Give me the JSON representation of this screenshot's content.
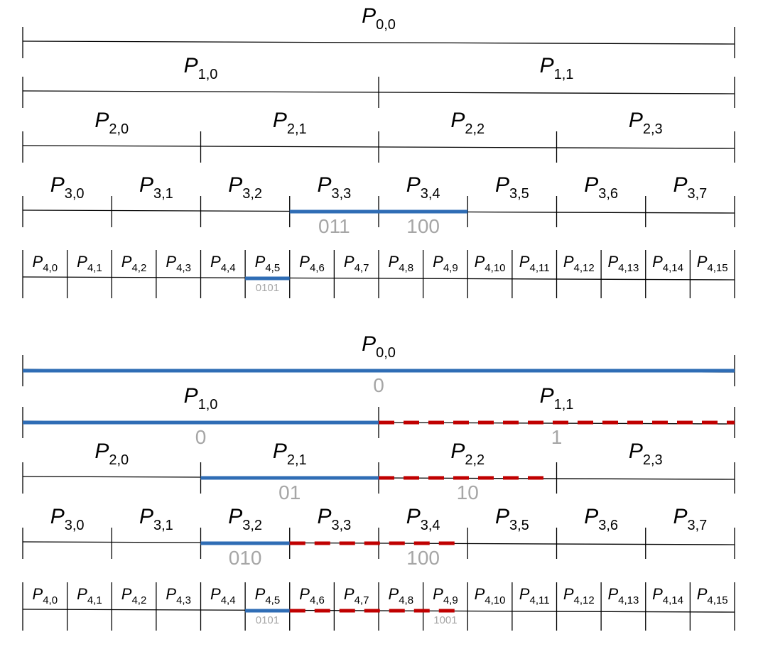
{
  "symbol": "P",
  "panels": [
    {
      "levels": [
        {
          "subscripts": [
            "0,0"
          ]
        },
        {
          "subscripts": [
            "1,0",
            "1,1"
          ]
        },
        {
          "subscripts": [
            "2,0",
            "2,1",
            "2,2",
            "2,3"
          ]
        },
        {
          "subscripts": [
            "3,0",
            "3,1",
            "3,2",
            "3,3",
            "3,4",
            "3,5",
            "3,6",
            "3,7"
          ]
        },
        {
          "subscripts": [
            "4,0",
            "4,1",
            "4,2",
            "4,3",
            "4,4",
            "4,5",
            "4,6",
            "4,7",
            "4,8",
            "4,9",
            "4,10",
            "4,11",
            "4,12",
            "4,13",
            "4,14",
            "4,15"
          ]
        }
      ],
      "codes": [
        "011",
        "100",
        "0101"
      ]
    },
    {
      "levels": [
        {
          "subscripts": [
            "0,0"
          ]
        },
        {
          "subscripts": [
            "1,0",
            "1,1"
          ]
        },
        {
          "subscripts": [
            "2,0",
            "2,1",
            "2,2",
            "2,3"
          ]
        },
        {
          "subscripts": [
            "3,0",
            "3,1",
            "3,2",
            "3,3",
            "3,4",
            "3,5",
            "3,6",
            "3,7"
          ]
        },
        {
          "subscripts": [
            "4,0",
            "4,1",
            "4,2",
            "4,3",
            "4,4",
            "4,5",
            "4,6",
            "4,7",
            "4,8",
            "4,9",
            "4,10",
            "4,11",
            "4,12",
            "4,13",
            "4,14",
            "4,15"
          ]
        }
      ],
      "codes": [
        "0",
        "0",
        "1",
        "01",
        "10",
        "010",
        "100",
        "0101",
        "1001"
      ]
    }
  ]
}
